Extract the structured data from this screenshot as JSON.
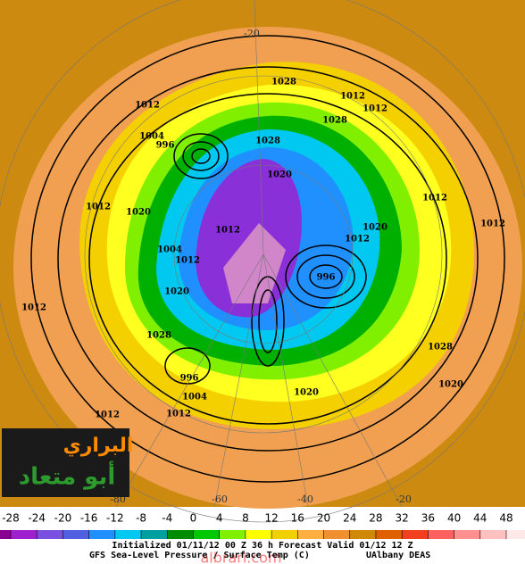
{
  "map": {
    "isobar_labels": [
      1012,
      1004,
      996,
      1012,
      1020,
      1004,
      1012,
      1020,
      1012,
      1028,
      996,
      1004,
      1012,
      1012,
      1028,
      1012,
      1028,
      1012,
      1028,
      1012,
      1012,
      1020,
      1012,
      1020,
      1012,
      1020,
      1028,
      1020,
      996
    ],
    "grid_labels": [
      "-20",
      "-80",
      "-60",
      "-40",
      "-20"
    ]
  },
  "logo": {
    "line1": "البراري",
    "line2": "أبو متعاد"
  },
  "watermark": "albrari.com",
  "colorbar": {
    "labels": [
      -28,
      -24,
      -20,
      -16,
      -12,
      -8,
      -4,
      0,
      4,
      8,
      12,
      16,
      20,
      24,
      28,
      32,
      36,
      40,
      44,
      48
    ],
    "colors": [
      "#8a0090",
      "#a020d0",
      "#7a50e0",
      "#5060e0",
      "#2090ff",
      "#00c8f0",
      "#00a0a0",
      "#008c00",
      "#00c800",
      "#80f000",
      "#ffff00",
      "#f0d000",
      "#ffb040",
      "#f09030",
      "#d08808",
      "#e06000",
      "#f04020",
      "#ff6060",
      "#ff9090",
      "#ffc0c0",
      "#ffe8e8"
    ]
  },
  "footer": {
    "line1": "Initialized 01/11/12 00 Z  36 h Forecast Valid 01/12 12 Z",
    "line2": "GFS Sea-Level Pressure / Surface Temp (C)",
    "credit": "UAlbany DEAS"
  }
}
